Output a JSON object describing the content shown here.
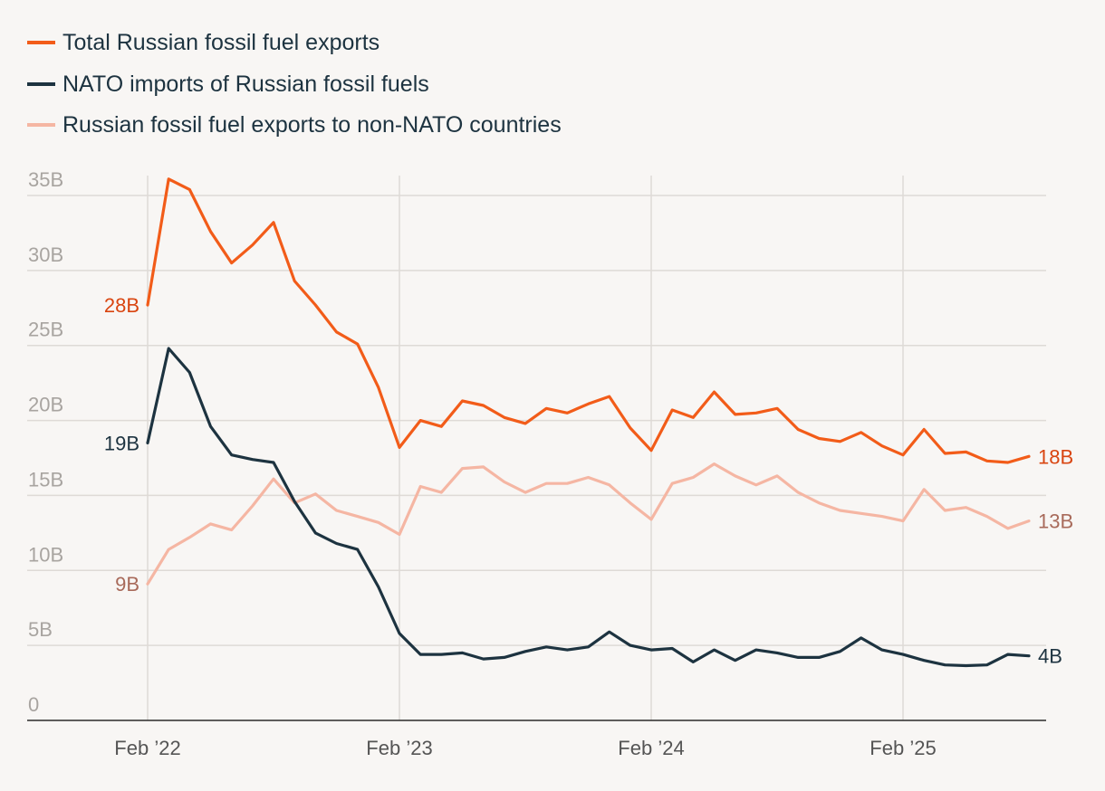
{
  "chart_data": {
    "type": "line",
    "title": "",
    "xlabel": "",
    "ylabel": "",
    "ylim": [
      0,
      35
    ],
    "grid": true,
    "legend_position": "top-left",
    "y_ticks": [
      {
        "value": 0,
        "label": "0"
      },
      {
        "value": 5,
        "label": "5B"
      },
      {
        "value": 10,
        "label": "10B"
      },
      {
        "value": 15,
        "label": "15B"
      },
      {
        "value": 20,
        "label": "20B"
      },
      {
        "value": 25,
        "label": "25B"
      },
      {
        "value": 30,
        "label": "30B"
      },
      {
        "value": 35,
        "label": "35B"
      }
    ],
    "x_ticks": [
      {
        "index": 0,
        "label": "Feb ’22"
      },
      {
        "index": 12,
        "label": "Feb ’23"
      },
      {
        "index": 24,
        "label": "Feb ’24"
      },
      {
        "index": 36,
        "label": "Feb ’25"
      }
    ],
    "x_start": "Feb 2022",
    "x_step": "month",
    "series": [
      {
        "name": "Total Russian fossil fuel exports",
        "color": "#f25c19",
        "label_color": "#d94510",
        "start_label": "28B",
        "end_label": "18B",
        "values": [
          27.7,
          36.1,
          35.4,
          32.6,
          30.5,
          31.7,
          33.2,
          29.3,
          27.7,
          25.9,
          25.1,
          22.2,
          18.2,
          20.0,
          19.6,
          21.3,
          21.0,
          20.2,
          19.8,
          20.8,
          20.5,
          21.1,
          21.6,
          19.5,
          18.0,
          20.7,
          20.2,
          21.9,
          20.4,
          20.5,
          20.8,
          19.4,
          18.8,
          18.6,
          19.2,
          18.3,
          17.7,
          19.4,
          17.8,
          17.9,
          17.3,
          17.2,
          17.6
        ]
      },
      {
        "name": "NATO imports of Russian fossil fuels",
        "color": "#1d3340",
        "label_color": "#1d3340",
        "start_label": "19B",
        "end_label": "4B",
        "values": [
          18.5,
          24.8,
          23.2,
          19.6,
          17.7,
          17.4,
          17.2,
          14.6,
          12.5,
          11.8,
          11.4,
          8.9,
          5.8,
          4.4,
          4.4,
          4.5,
          4.1,
          4.2,
          4.6,
          4.9,
          4.7,
          4.9,
          5.9,
          5.0,
          4.7,
          4.8,
          3.9,
          4.7,
          4.0,
          4.7,
          4.5,
          4.2,
          4.2,
          4.6,
          5.5,
          4.7,
          4.4,
          4.0,
          3.7,
          3.65,
          3.7,
          4.4,
          4.3
        ]
      },
      {
        "name": "Russian fossil fuel exports to non-NATO countries",
        "color": "#f5b6a3",
        "label_color": "#a86a5a",
        "start_label": "9B",
        "end_label": "13B",
        "values": [
          9.1,
          11.4,
          12.2,
          13.1,
          12.7,
          14.3,
          16.1,
          14.5,
          15.1,
          14.0,
          13.6,
          13.2,
          12.4,
          15.6,
          15.2,
          16.8,
          16.9,
          15.9,
          15.2,
          15.8,
          15.8,
          16.2,
          15.7,
          14.5,
          13.4,
          15.8,
          16.2,
          17.1,
          16.3,
          15.7,
          16.3,
          15.2,
          14.5,
          14.0,
          13.8,
          13.6,
          13.3,
          15.4,
          14.0,
          14.2,
          13.6,
          12.8,
          13.3
        ]
      }
    ]
  }
}
